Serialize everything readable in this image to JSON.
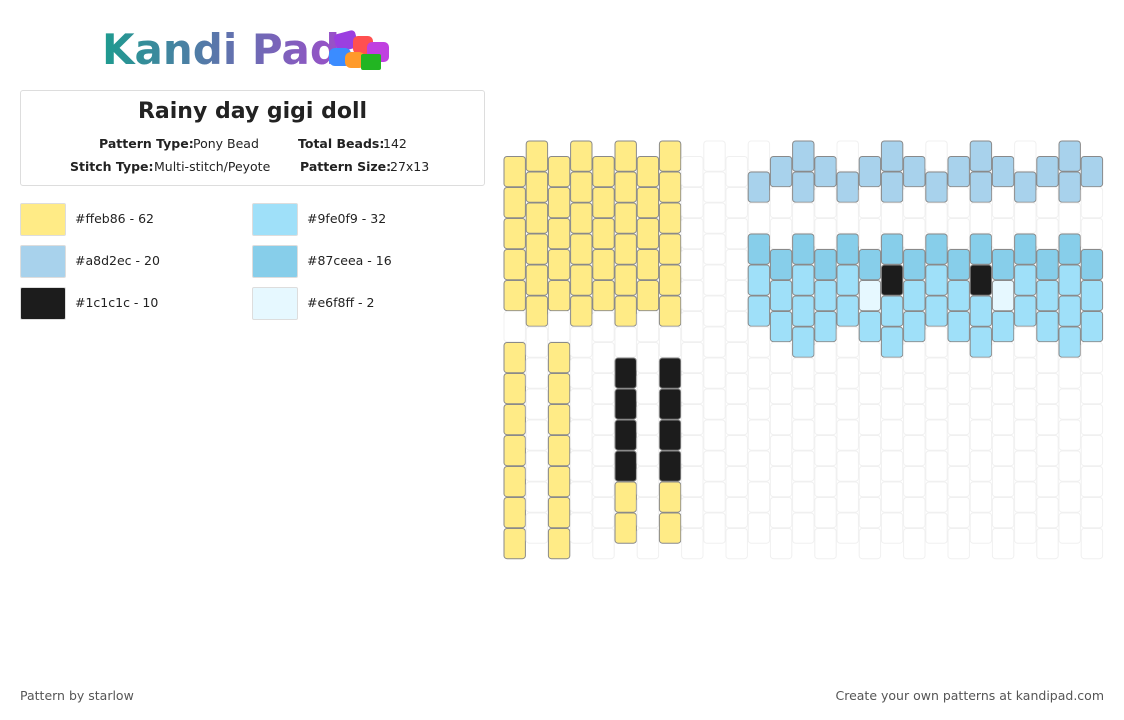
{
  "header": {
    "logo": "Kandi Pad"
  },
  "info": {
    "title": "Rainy day gigi doll",
    "pattern_type_label": "Pattern Type:",
    "pattern_type": "Pony Bead",
    "total_beads_label": "Total Beads:",
    "total_beads": "142",
    "stitch_type_label": "Stitch Type:",
    "stitch_type": "Multi-stitch/Peyote",
    "pattern_size_label": "Pattern Size:",
    "pattern_size": "27x13"
  },
  "legend": [
    "#ffeb86 - 62",
    "#a8d2ec - 20",
    "#1c1c1c - 10",
    "#9fe0f9 - 32",
    "#87ceea - 16",
    "#e6f8ff - 2"
  ],
  "footer": {
    "author": "Pattern by starlow",
    "promo": "Create your own patterns at kandipad.com"
  }
}
